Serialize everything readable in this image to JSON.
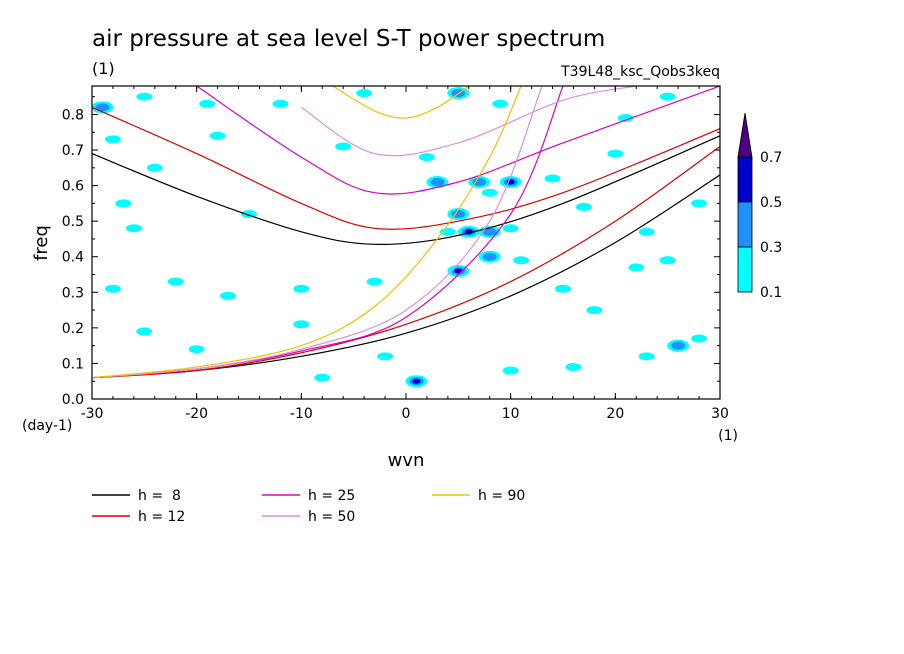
{
  "chart_data": {
    "type": "line",
    "title": "air pressure at sea level S-T power spectrum",
    "subtitle_units": "(1)",
    "run_label": "T39L48_ksc_Qobs3keq",
    "xlabel": "wvn",
    "x_units": "(1)",
    "ylabel": "freq",
    "y_units": "(day-1)",
    "xlim": [
      -30,
      30
    ],
    "ylim": [
      0,
      0.88
    ],
    "x_ticks": [
      -30,
      -20,
      -10,
      0,
      10,
      20,
      30
    ],
    "x_tick_labels": [
      "-30",
      "-20",
      "-10",
      "0",
      "10",
      "20",
      "30"
    ],
    "y_ticks": [
      0,
      0.1,
      0.2,
      0.3,
      0.4,
      0.5,
      0.6,
      0.7,
      0.8
    ],
    "y_tick_labels": [
      "0.0",
      "0.1",
      "0.2",
      "0.3",
      "0.4",
      "0.5",
      "0.6",
      "0.7",
      "0.8"
    ],
    "grid": false,
    "colorbar": {
      "levels": [
        0.1,
        0.3,
        0.5,
        0.7
      ],
      "labels": [
        "0.1",
        "0.3",
        "0.5",
        "0.7"
      ],
      "colors": [
        "#00ffff",
        "#1e90ff",
        "#0000cd",
        "#4b0082"
      ]
    },
    "series": [
      {
        "name": "h =  8",
        "color": "#000000",
        "upper_x": [
          -30,
          -20,
          -10,
          -3,
          5,
          15,
          30
        ],
        "upper_y": [
          0.69,
          0.57,
          0.47,
          0.435,
          0.46,
          0.55,
          0.74
        ],
        "lower_x": [
          -30,
          -20,
          -10,
          0,
          10,
          20,
          30
        ],
        "lower_y": [
          0.06,
          0.08,
          0.12,
          0.185,
          0.29,
          0.44,
          0.63
        ]
      },
      {
        "name": "h = 12",
        "color": "#e00000",
        "upper_x": [
          -30,
          -20,
          -10,
          -3,
          5,
          15,
          30
        ],
        "upper_y": [
          0.82,
          0.69,
          0.55,
          0.48,
          0.5,
          0.58,
          0.76
        ],
        "lower_x": [
          -30,
          -20,
          -10,
          0,
          10,
          20,
          30
        ],
        "lower_y": [
          0.06,
          0.08,
          0.13,
          0.21,
          0.33,
          0.5,
          0.71
        ]
      },
      {
        "name": "h = 25",
        "color": "#e000c0",
        "upper_x": [
          -20,
          -10,
          -3,
          5,
          15,
          30
        ],
        "upper_y": [
          0.88,
          0.68,
          0.58,
          0.61,
          0.72,
          0.88
        ],
        "lower_x": [
          -30,
          -20,
          -10,
          0,
          10,
          15
        ],
        "lower_y": [
          0.06,
          0.085,
          0.135,
          0.23,
          0.52,
          0.88
        ]
      },
      {
        "name": "h = 50",
        "color": "#d890e0",
        "upper_x": [
          -10,
          -3,
          5,
          15,
          22
        ],
        "upper_y": [
          0.82,
          0.69,
          0.72,
          0.84,
          0.88
        ],
        "lower_x": [
          -30,
          -20,
          -10,
          0,
          8,
          13
        ],
        "lower_y": [
          0.06,
          0.085,
          0.14,
          0.25,
          0.5,
          0.88
        ]
      },
      {
        "name": "h = 90",
        "color": "#f0c000",
        "upper_x": [
          -7,
          -3,
          0,
          3,
          6
        ],
        "upper_y": [
          0.88,
          0.81,
          0.79,
          0.82,
          0.88
        ],
        "lower_x": [
          -30,
          -20,
          -10,
          -3,
          3,
          8,
          11
        ],
        "lower_y": [
          0.06,
          0.09,
          0.15,
          0.26,
          0.45,
          0.68,
          0.88
        ]
      }
    ],
    "contour_blobs": [
      {
        "x": -29,
        "y": 0.82,
        "level": 0.3
      },
      {
        "x": -25,
        "y": 0.85,
        "level": 0.1
      },
      {
        "x": -19,
        "y": 0.83,
        "level": 0.1
      },
      {
        "x": -24,
        "y": 0.65,
        "level": 0.1
      },
      {
        "x": -12,
        "y": 0.83,
        "level": 0.1
      },
      {
        "x": -4,
        "y": 0.86,
        "level": 0.1
      },
      {
        "x": 5,
        "y": 0.86,
        "level": 0.3
      },
      {
        "x": 9,
        "y": 0.83,
        "level": 0.1
      },
      {
        "x": 21,
        "y": 0.79,
        "level": 0.1
      },
      {
        "x": 25,
        "y": 0.85,
        "level": 0.1
      },
      {
        "x": 2,
        "y": 0.68,
        "level": 0.1
      },
      {
        "x": 3,
        "y": 0.61,
        "level": 0.3
      },
      {
        "x": 7,
        "y": 0.61,
        "level": 0.3
      },
      {
        "x": 10,
        "y": 0.61,
        "level": 0.5
      },
      {
        "x": 8,
        "y": 0.58,
        "level": 0.1
      },
      {
        "x": 5,
        "y": 0.52,
        "level": 0.3
      },
      {
        "x": 6,
        "y": 0.47,
        "level": 0.5
      },
      {
        "x": 8,
        "y": 0.47,
        "level": 0.3
      },
      {
        "x": 4,
        "y": 0.47,
        "level": 0.1
      },
      {
        "x": 10,
        "y": 0.48,
        "level": 0.1
      },
      {
        "x": 5,
        "y": 0.36,
        "level": 0.5
      },
      {
        "x": 8,
        "y": 0.4,
        "level": 0.3
      },
      {
        "x": 11,
        "y": 0.39,
        "level": 0.1
      },
      {
        "x": -27,
        "y": 0.55,
        "level": 0.1
      },
      {
        "x": -15,
        "y": 0.52,
        "level": 0.1
      },
      {
        "x": -26,
        "y": 0.48,
        "level": 0.1
      },
      {
        "x": -28,
        "y": 0.31,
        "level": 0.1
      },
      {
        "x": -22,
        "y": 0.33,
        "level": 0.1
      },
      {
        "x": -17,
        "y": 0.29,
        "level": 0.1
      },
      {
        "x": -10,
        "y": 0.31,
        "level": 0.1
      },
      {
        "x": -3,
        "y": 0.33,
        "level": 0.1
      },
      {
        "x": -25,
        "y": 0.19,
        "level": 0.1
      },
      {
        "x": -20,
        "y": 0.14,
        "level": 0.1
      },
      {
        "x": -10,
        "y": 0.21,
        "level": 0.1
      },
      {
        "x": 1,
        "y": 0.05,
        "level": 0.5
      },
      {
        "x": -8,
        "y": 0.06,
        "level": 0.1
      },
      {
        "x": 15,
        "y": 0.31,
        "level": 0.1
      },
      {
        "x": 18,
        "y": 0.25,
        "level": 0.1
      },
      {
        "x": 22,
        "y": 0.37,
        "level": 0.1
      },
      {
        "x": 25,
        "y": 0.39,
        "level": 0.1
      },
      {
        "x": 26,
        "y": 0.15,
        "level": 0.3
      },
      {
        "x": 28,
        "y": 0.17,
        "level": 0.1
      },
      {
        "x": 23,
        "y": 0.12,
        "level": 0.1
      },
      {
        "x": 16,
        "y": 0.09,
        "level": 0.1
      },
      {
        "x": 10,
        "y": 0.08,
        "level": 0.1
      },
      {
        "x": -2,
        "y": 0.12,
        "level": 0.1
      },
      {
        "x": 14,
        "y": 0.62,
        "level": 0.1
      },
      {
        "x": 17,
        "y": 0.54,
        "level": 0.1
      },
      {
        "x": 23,
        "y": 0.47,
        "level": 0.1
      },
      {
        "x": 28,
        "y": 0.55,
        "level": 0.1
      },
      {
        "x": -6,
        "y": 0.71,
        "level": 0.1
      },
      {
        "x": -18,
        "y": 0.74,
        "level": 0.1
      },
      {
        "x": -28,
        "y": 0.73,
        "level": 0.1
      },
      {
        "x": 20,
        "y": 0.69,
        "level": 0.1
      }
    ]
  }
}
